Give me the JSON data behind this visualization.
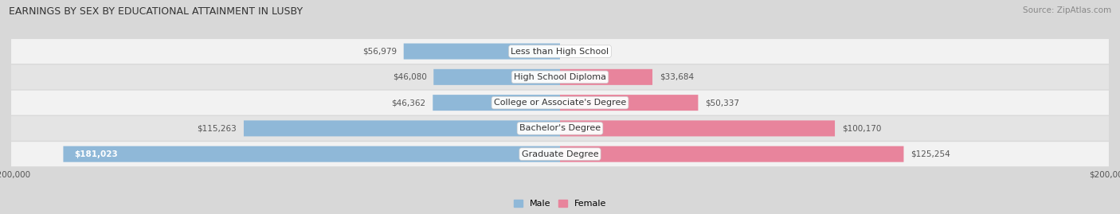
{
  "title": "EARNINGS BY SEX BY EDUCATIONAL ATTAINMENT IN LUSBY",
  "source": "Source: ZipAtlas.com",
  "categories": [
    "Less than High School",
    "High School Diploma",
    "College or Associate's Degree",
    "Bachelor's Degree",
    "Graduate Degree"
  ],
  "male_values": [
    56979,
    46080,
    46362,
    115263,
    181023
  ],
  "female_values": [
    0,
    33684,
    50337,
    100170,
    125254
  ],
  "male_color": "#8fb8d8",
  "female_color": "#e8849c",
  "bar_height": 0.62,
  "xlim": 200000,
  "fig_bg": "#d8d8d8",
  "row_bg_light": "#f2f2f2",
  "row_bg_dark": "#e4e4e4",
  "title_fontsize": 9,
  "label_fontsize": 8,
  "value_fontsize": 7.5,
  "legend_fontsize": 8,
  "source_fontsize": 7.5
}
